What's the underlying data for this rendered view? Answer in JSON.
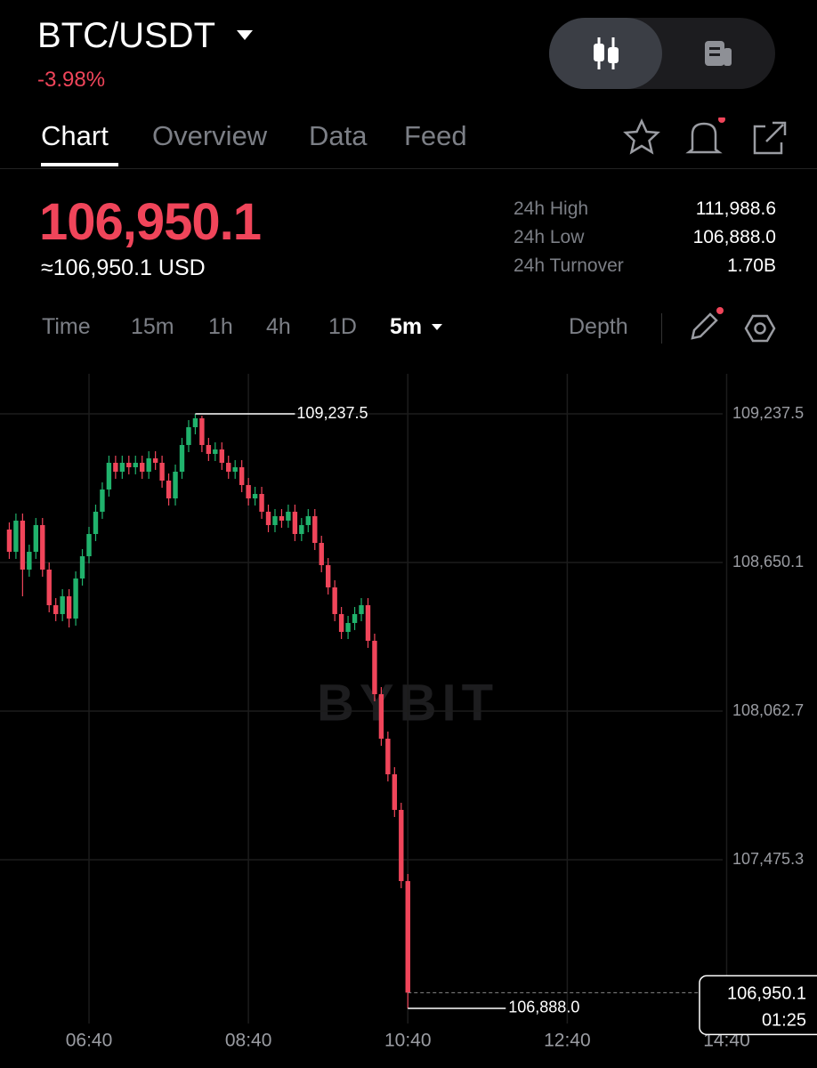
{
  "header": {
    "pair": "BTC/USDT",
    "change": "-3.98%"
  },
  "tabs": [
    "Chart",
    "Overview",
    "Data",
    "Feed"
  ],
  "price": {
    "last": "106,950.1",
    "usd": "≈106,950.1 USD"
  },
  "stats": [
    {
      "label": "24h High",
      "value": "111,988.6"
    },
    {
      "label": "24h Low",
      "value": "106,888.0"
    },
    {
      "label": "24h Turnover",
      "value": "1.70B"
    }
  ],
  "intervals": [
    "Time",
    "15m",
    "1h",
    "4h",
    "1D"
  ],
  "selected_interval": "5m",
  "depth": "Depth",
  "chart_data": {
    "type": "candlestick",
    "watermark": "BYBIT",
    "up_color": "#20b26c",
    "down_color": "#f0455a",
    "grid": true,
    "x": [
      "05:40",
      "05:45",
      "05:50",
      "05:55",
      "06:00",
      "06:05",
      "06:10",
      "06:15",
      "06:20",
      "06:25",
      "06:30",
      "06:35",
      "06:40",
      "06:45",
      "06:50",
      "06:55",
      "07:00",
      "07:05",
      "07:10",
      "07:15",
      "07:20",
      "07:25",
      "07:30",
      "07:35",
      "07:40",
      "07:45",
      "07:50",
      "07:55",
      "08:00",
      "08:05",
      "08:10",
      "08:15",
      "08:20",
      "08:25",
      "08:30",
      "08:35",
      "08:40",
      "08:45",
      "08:50",
      "08:55",
      "09:00",
      "09:05",
      "09:10",
      "09:15",
      "09:20",
      "09:25",
      "09:30",
      "09:35",
      "09:40",
      "09:45",
      "09:50",
      "09:55",
      "10:00",
      "10:05",
      "10:10",
      "10:15",
      "10:20",
      "10:25",
      "10:30",
      "10:35",
      "10:40"
    ],
    "open": [
      108780.3,
      108692.4,
      108815.5,
      108622.0,
      108692.4,
      108797.9,
      108622.0,
      108481.3,
      108446.2,
      108516.5,
      108428.6,
      108586.9,
      108674.8,
      108762.7,
      108850.7,
      108938.6,
      109044.1,
      109008.9,
      109044.1,
      109026.5,
      109044.1,
      109008.9,
      109061.7,
      109044.1,
      108973.7,
      108903.4,
      109008.9,
      109114.4,
      109184.7,
      109219.9,
      109114.4,
      109079.2,
      109096.8,
      109044.1,
      109008.9,
      109026.5,
      108956.1,
      108903.4,
      108921.0,
      108850.7,
      108797.9,
      108833.1,
      108815.5,
      108850.7,
      108762.7,
      108797.9,
      108833.1,
      108727.5,
      108639.6,
      108551.7,
      108446.2,
      108375.8,
      108411.0,
      108446.2,
      108481.3,
      108340.7,
      108129.6,
      107953.8,
      107813.1,
      107672.4,
      107391.0
    ],
    "high": [
      108808.4,
      108843.6,
      108843.6,
      108720.5,
      108826.0,
      108826.0,
      108650.1,
      108509.4,
      108544.6,
      108544.6,
      108615.0,
      108702.9,
      108790.8,
      108878.8,
      108966.7,
      109072.2,
      109072.2,
      109072.2,
      109072.2,
      109072.2,
      109072.2,
      109089.8,
      109089.8,
      109072.2,
      109001.8,
      109037.0,
      109142.5,
      109212.8,
      109237.5,
      109230.0,
      109142.5,
      109124.9,
      109124.9,
      109072.2,
      109054.6,
      109054.6,
      108984.2,
      108949.1,
      108949.1,
      108878.8,
      108861.2,
      108861.2,
      108878.8,
      108878.8,
      108826.0,
      108861.2,
      108861.2,
      108755.6,
      108667.7,
      108579.8,
      108474.3,
      108439.1,
      108474.3,
      108509.4,
      108509.4,
      108368.8,
      108157.7,
      107981.9,
      107841.2,
      107700.5,
      107419.1
    ],
    "low": [
      108664.3,
      108664.3,
      108516.5,
      108593.9,
      108664.3,
      108593.9,
      108453.2,
      108418.1,
      108418.1,
      108393.4,
      108400.5,
      108558.8,
      108646.7,
      108734.6,
      108822.6,
      108910.5,
      108980.8,
      108980.8,
      108998.4,
      108998.4,
      108980.8,
      108980.8,
      109016.0,
      108945.6,
      108875.3,
      108875.3,
      108980.8,
      109086.3,
      109156.6,
      109086.3,
      109051.1,
      109051.1,
      109016.0,
      108980.8,
      108980.8,
      108928.0,
      108875.3,
      108875.3,
      108822.6,
      108769.8,
      108769.8,
      108787.4,
      108787.4,
      108734.6,
      108734.6,
      108769.8,
      108699.4,
      108611.5,
      108523.6,
      108418.1,
      108347.7,
      108347.7,
      108383.0,
      108418.1,
      108312.6,
      108101.5,
      107925.7,
      107785.0,
      107644.3,
      107362.9,
      106888.0
    ],
    "close": [
      108692.4,
      108815.5,
      108622.0,
      108692.4,
      108797.9,
      108622.0,
      108481.3,
      108446.2,
      108516.5,
      108428.6,
      108586.9,
      108674.8,
      108762.7,
      108850.7,
      108938.6,
      109044.1,
      109008.9,
      109044.1,
      109026.5,
      109044.1,
      109008.9,
      109061.7,
      109044.1,
      108973.7,
      108903.4,
      109008.9,
      109114.4,
      109184.7,
      109219.9,
      109114.4,
      109079.2,
      109096.8,
      109044.1,
      109008.9,
      109026.5,
      108956.1,
      108903.4,
      108921.0,
      108850.7,
      108797.9,
      108833.1,
      108815.5,
      108850.7,
      108762.7,
      108797.9,
      108833.1,
      108727.5,
      108639.6,
      108551.7,
      108446.2,
      108375.8,
      108411.0,
      108446.2,
      108481.3,
      108340.7,
      108129.6,
      107953.8,
      107813.1,
      107672.4,
      107391.0,
      106950.1
    ],
    "xlim": [
      "05:33",
      "15:48"
    ],
    "xticks": [
      "06:40",
      "08:40",
      "10:40",
      "12:40",
      "14:40"
    ],
    "ylim": [
      106828.2,
      109395.8
    ],
    "yticks": [
      {
        "value": 109237.5,
        "label": "109,237.5"
      },
      {
        "value": 108650.1,
        "label": "108,650.1"
      },
      {
        "value": 108062.7,
        "label": "108,062.7"
      },
      {
        "value": 107475.3,
        "label": "107,475.3"
      }
    ],
    "high_label": {
      "value": 109237.5,
      "label": "109,237.5"
    },
    "low_label": {
      "value": 106888.0,
      "label": "106,888.0"
    },
    "last_price": {
      "value": 106950.1,
      "label": "106,950.1"
    },
    "countdown": "01:25"
  }
}
